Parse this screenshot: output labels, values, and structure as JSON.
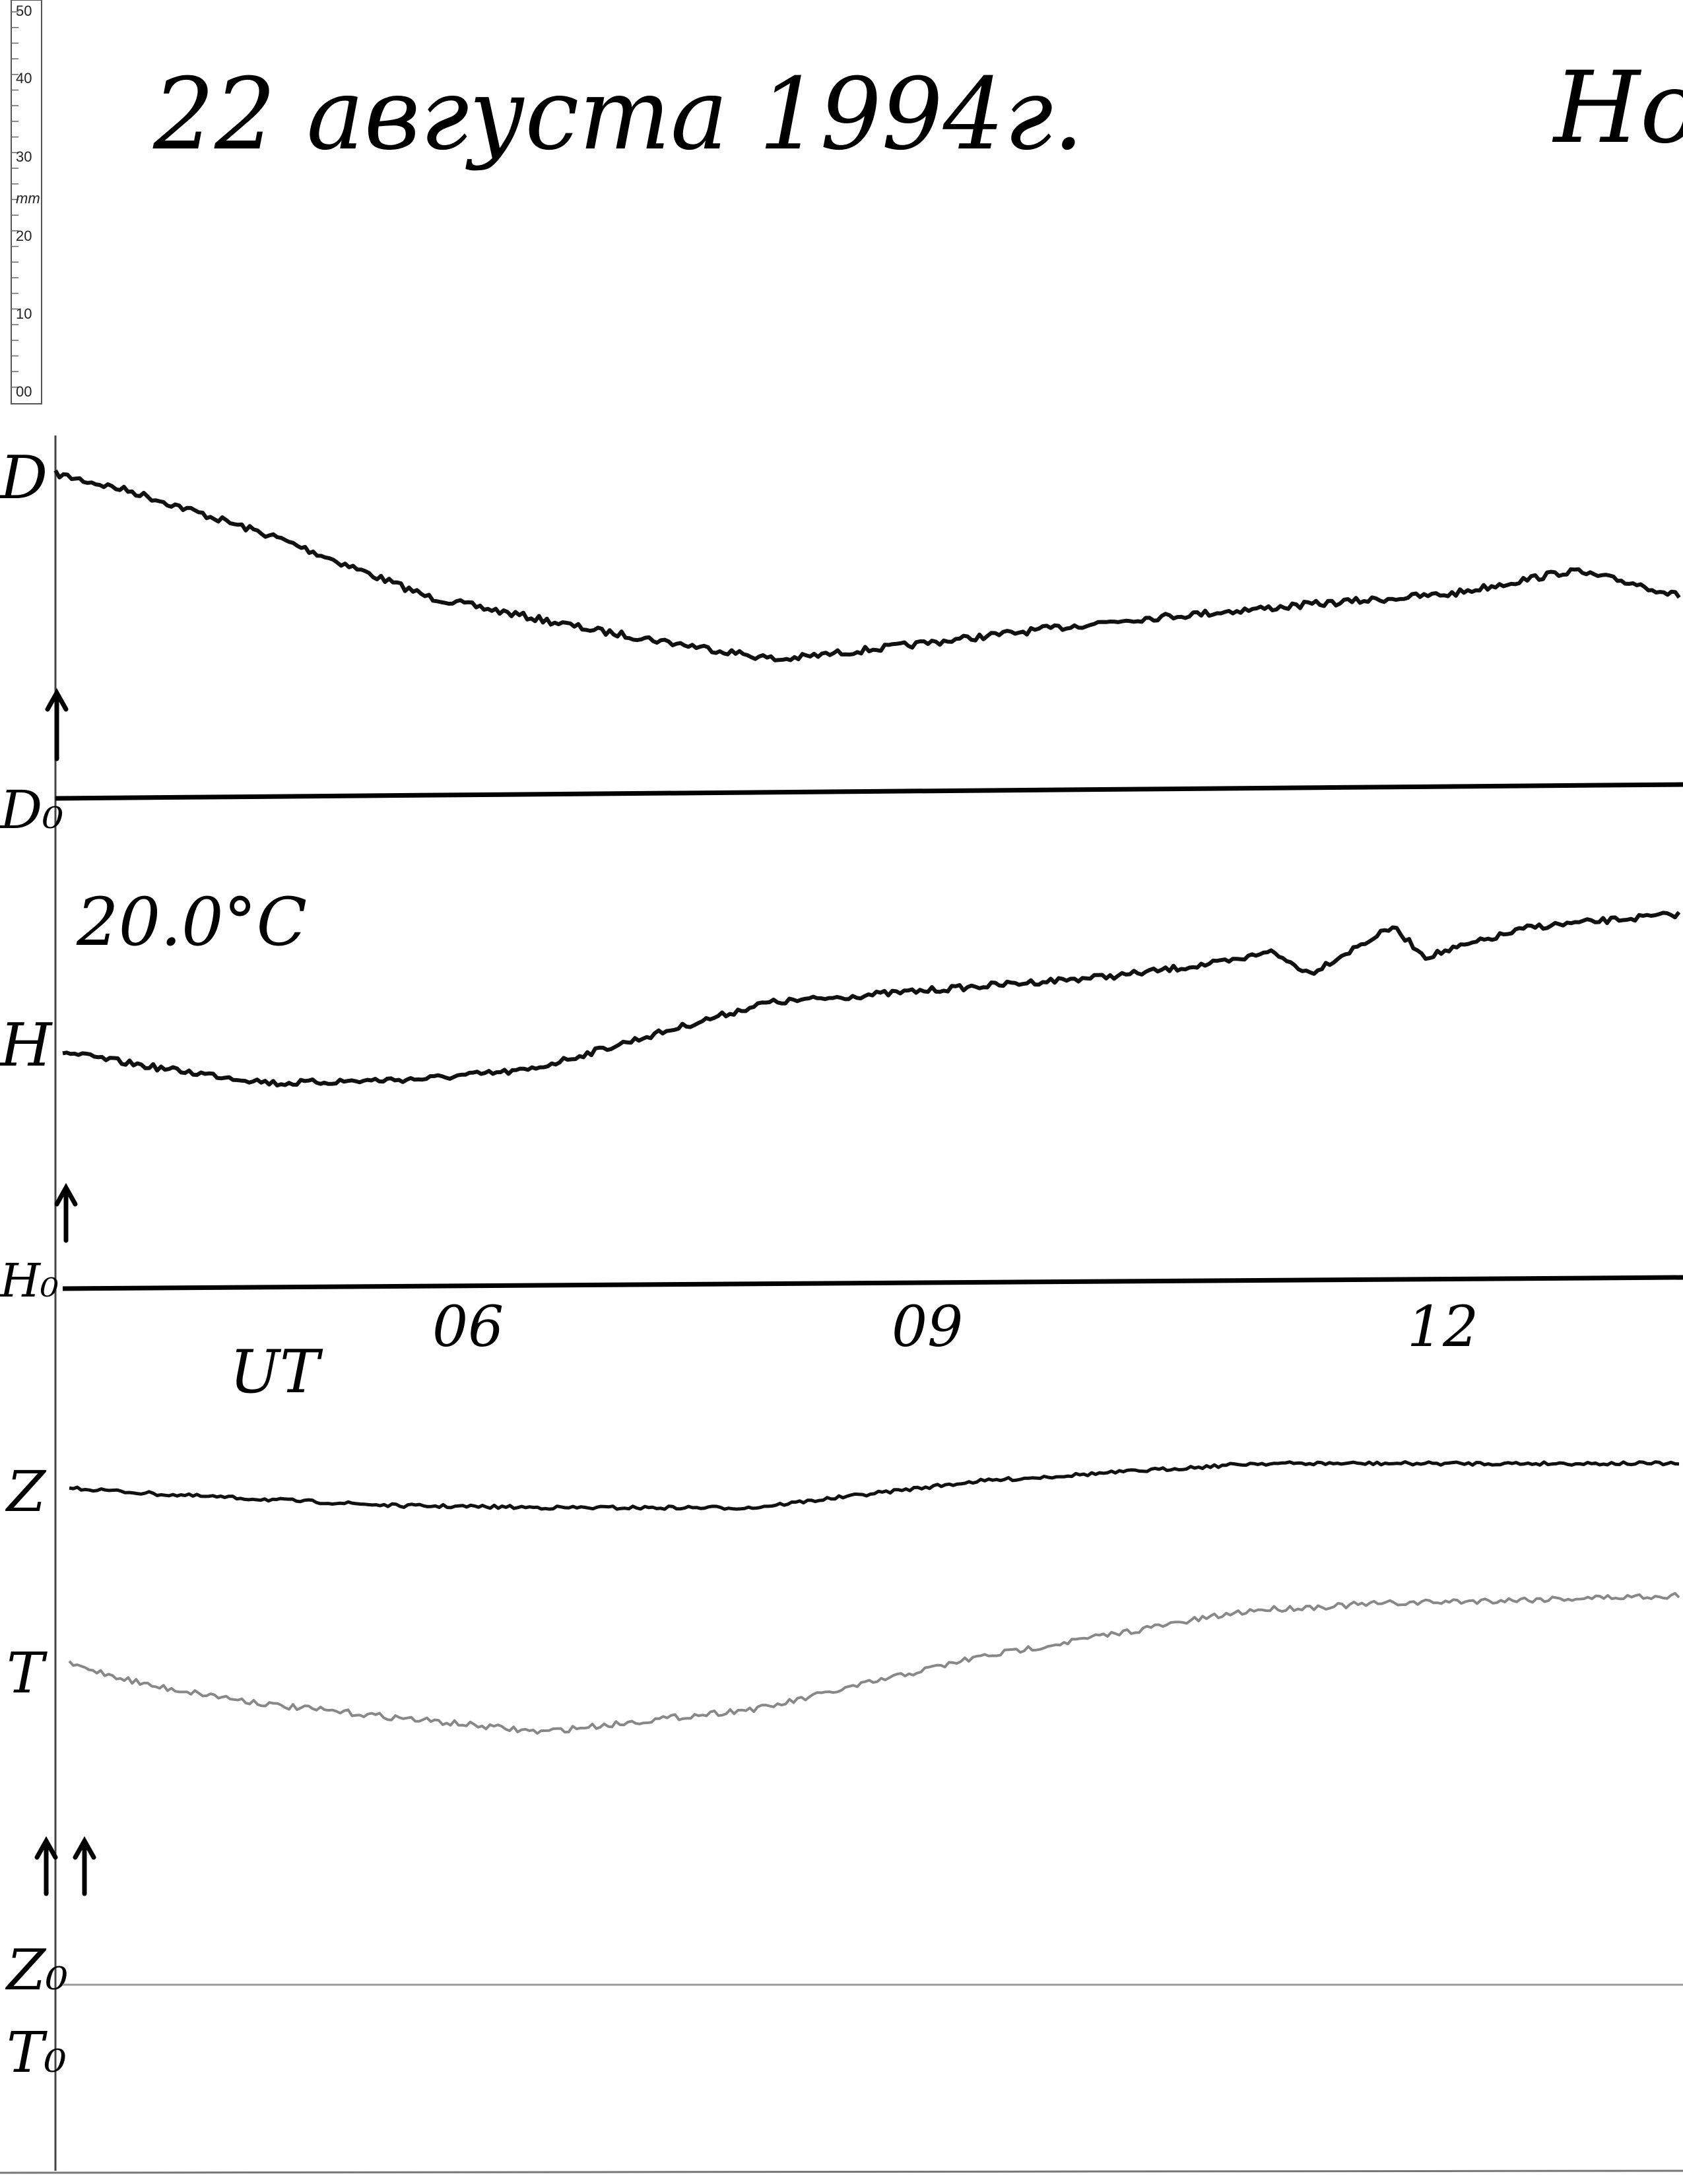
{
  "header": {
    "title": "22 августа 1994г.",
    "station": "Ho"
  },
  "ruler": {
    "labels": [
      "50",
      "40",
      "30",
      "mm",
      "20",
      "10",
      "00"
    ]
  },
  "traces": {
    "D": "D",
    "D0": "D₀",
    "temperature": "20.0°C",
    "H": "H",
    "H0": "H₀",
    "Z": "Z",
    "T": "T",
    "Z0": "Z₀",
    "T0": "T₀"
  },
  "time_axis": {
    "unit": "UT",
    "hours": [
      "06",
      "09",
      "12"
    ]
  }
}
